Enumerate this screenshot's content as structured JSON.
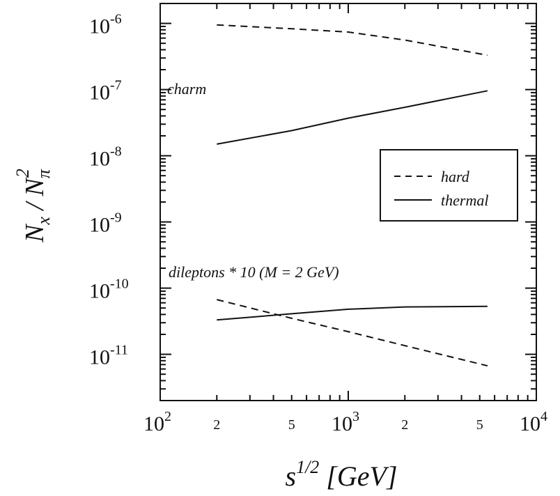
{
  "chart_data": {
    "type": "line",
    "xscale": "log",
    "yscale": "log",
    "xlim": [
      100,
      10000
    ],
    "ylim": [
      2e-12,
      2e-06
    ],
    "grid": false,
    "legend_position": "right",
    "xlabel": "s^{1/2} [GeV]",
    "ylabel": "N_x / N_π^2",
    "x_major_ticks": [
      {
        "value": 100,
        "base": "10",
        "exp": "2"
      },
      {
        "value": 1000,
        "base": "10",
        "exp": "3"
      },
      {
        "value": 10000,
        "base": "10",
        "exp": "4"
      }
    ],
    "x_minor_labels": [
      {
        "value": 200,
        "label": "2"
      },
      {
        "value": 500,
        "label": "5"
      },
      {
        "value": 2000,
        "label": "2"
      },
      {
        "value": 5000,
        "label": "5"
      }
    ],
    "y_major_ticks": [
      {
        "value": 1e-06,
        "base": "10",
        "exp": "-6"
      },
      {
        "value": 1e-07,
        "base": "10",
        "exp": "-7"
      },
      {
        "value": 1e-08,
        "base": "10",
        "exp": "-8"
      },
      {
        "value": 1e-09,
        "base": "10",
        "exp": "-9"
      },
      {
        "value": 1e-10,
        "base": "10",
        "exp": "-10"
      },
      {
        "value": 1e-11,
        "base": "10",
        "exp": "-11"
      }
    ],
    "annotations": {
      "charm": "charm",
      "dileptons": "dileptons * 10 (M = 2 GeV)"
    },
    "legend": [
      {
        "label": "hard",
        "style": "dashed"
      },
      {
        "label": "thermal",
        "style": "solid"
      }
    ],
    "series": [
      {
        "group": "charm",
        "style": "dashed",
        "x": [
          200,
          500,
          1000,
          2000,
          5500
        ],
        "y": [
          9.5e-07,
          8.3e-07,
          7.4e-07,
          5.6e-07,
          3.3e-07
        ]
      },
      {
        "group": "charm",
        "style": "solid",
        "x": [
          200,
          500,
          1000,
          2000,
          5500
        ],
        "y": [
          1.5e-08,
          2.4e-08,
          3.7e-08,
          5.4e-08,
          9.6e-08
        ]
      },
      {
        "group": "dileptons",
        "style": "dashed",
        "x": [
          200,
          500,
          1000,
          2000,
          5500
        ],
        "y": [
          6.7e-11,
          3.5e-11,
          2.2e-11,
          1.35e-11,
          6.7e-12
        ]
      },
      {
        "group": "dileptons",
        "style": "solid",
        "x": [
          200,
          500,
          1000,
          2000,
          5500
        ],
        "y": [
          3.3e-11,
          4.1e-11,
          4.8e-11,
          5.2e-11,
          5.3e-11
        ]
      }
    ]
  }
}
